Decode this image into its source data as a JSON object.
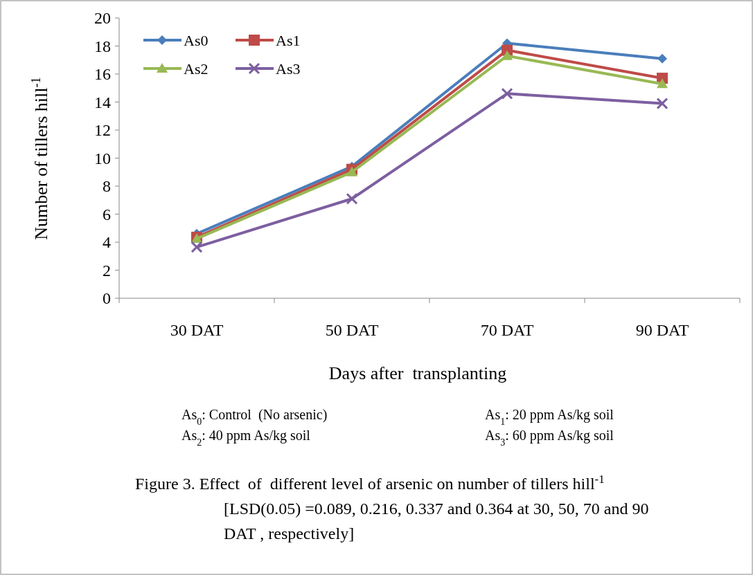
{
  "chart_data": {
    "type": "line",
    "xlabel": "Days after  transplanting",
    "ylabel": "Number of tillers hill$^{-1}$",
    "categories": [
      "30 DAT",
      "50 DAT",
      "70 DAT",
      "90 DAT"
    ],
    "series": [
      {
        "name": "As0",
        "color": "#4a7ebb",
        "marker": "diamond",
        "values": [
          4.6,
          9.4,
          18.2,
          17.1
        ]
      },
      {
        "name": "As1",
        "color": "#be4b48",
        "marker": "square",
        "values": [
          4.35,
          9.2,
          17.7,
          15.7
        ]
      },
      {
        "name": "As2",
        "color": "#98b954",
        "marker": "triangle",
        "values": [
          4.25,
          9.0,
          17.3,
          15.3
        ]
      },
      {
        "name": "As3",
        "color": "#7d5fa0",
        "marker": "cross",
        "values": [
          3.65,
          7.1,
          14.6,
          13.9
        ]
      }
    ],
    "ylim": [
      0,
      20
    ],
    "yticks": [
      0,
      2,
      4,
      6,
      8,
      10,
      12,
      14,
      16,
      18,
      20
    ],
    "grid": false,
    "legend": "top left",
    "line_style": "solid",
    "annotations": [
      "As$_{0}$: Control  (No arsenic)",
      "As$_{1}$: 20 ppm As/kg soil",
      "As$_{2}$: 40 ppm As/kg soil",
      "As$_{3}$: 60 ppm As/kg soil",
      "Figure 3. Effect  of  different level of arsenic on number of tillers hill$^{-1}$ [LSD(0.05) =0.089, 0.216, 0.337 and 0.364 at 30, 50, 70 and 90 DAT , respectively]"
    ]
  }
}
